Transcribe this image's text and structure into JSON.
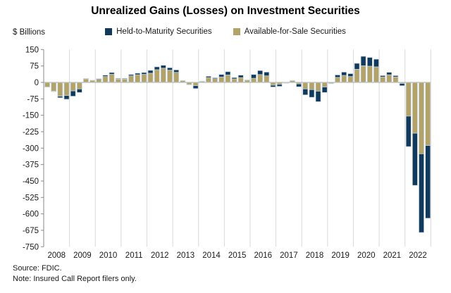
{
  "title": "Unrealized Gains (Losses) on Investment Securities",
  "y_axis_label": "$ Billions",
  "legend": [
    {
      "label": "Held-to-Maturity Securities",
      "color": "#11395C"
    },
    {
      "label": "Available-for-Sale Securities",
      "color": "#B3A369"
    }
  ],
  "footer": {
    "source": "Source: FDIC.",
    "note": "Note: Insured Call Report filers only."
  },
  "chart_data": {
    "type": "bar",
    "stacked": true,
    "title": "Unrealized Gains (Losses) on Investment Securities",
    "ylabel": "$ Billions",
    "x_unit": "quarterly, 2008Q1 - 2022Q4",
    "x_tick_labels": [
      "2008",
      "2009",
      "2010",
      "2011",
      "2012",
      "2013",
      "2014",
      "2015",
      "2016",
      "2017",
      "2018",
      "2019",
      "2020",
      "2021",
      "2022"
    ],
    "quarters_per_year": 4,
    "ylim": [
      -750,
      150
    ],
    "ytick_step": 75,
    "grid": "vertical-year-lines-only",
    "legend_position": "top",
    "colors": {
      "held_to_maturity": "#11395C",
      "available_for_sale": "#B3A369",
      "bar_outline": "#C8D7E1",
      "gridline": "#D9D9D9",
      "zero_line": "#A6A6A6",
      "axis": "#8A8A8A"
    },
    "series": [
      {
        "name": "Held-to-Maturity Securities",
        "color": "#11395C",
        "stack_order": "outer",
        "values": [
          -1,
          -2,
          -7,
          -17,
          -24,
          -16,
          2,
          1,
          3,
          6,
          8,
          3,
          3,
          6,
          7,
          8,
          13,
          13,
          13,
          11,
          11,
          1,
          -1,
          -13,
          1,
          6,
          4,
          11,
          15,
          6,
          11,
          2,
          17,
          18,
          17,
          -8,
          -9,
          -1,
          1,
          -13,
          -27,
          -35,
          -48,
          -25,
          -1,
          11,
          15,
          13,
          27,
          43,
          40,
          35,
          6,
          11,
          6,
          -10,
          -139,
          -238,
          -359,
          -332
        ]
      },
      {
        "name": "Available-for-Sale Securities",
        "color": "#B3A369",
        "stack_order": "inner",
        "values": [
          -21,
          -40,
          -63,
          -60,
          -39,
          -30,
          16,
          9,
          14,
          27,
          37,
          15,
          15,
          30,
          35,
          37,
          42,
          58,
          65,
          56,
          46,
          8,
          -10,
          -15,
          5,
          22,
          17,
          25,
          34,
          16,
          22,
          10,
          19,
          36,
          30,
          -13,
          -9,
          -3,
          8,
          -7,
          -30,
          -33,
          -40,
          -21,
          -5,
          23,
          32,
          27,
          60,
          76,
          74,
          71,
          25,
          35,
          25,
          -5,
          -154,
          -232,
          -326,
          -288
        ]
      }
    ],
    "stacked_totals": [
      -22,
      -42,
      -70,
      -77,
      -63,
      -46,
      18,
      10,
      17,
      33,
      45,
      18,
      18,
      36,
      42,
      45,
      55,
      71,
      78,
      67,
      57,
      9,
      -11,
      -28,
      6,
      28,
      21,
      36,
      49,
      22,
      33,
      12,
      36,
      54,
      47,
      -21,
      -18,
      -4,
      9,
      -20,
      -57,
      -68,
      -88,
      -46,
      -6,
      34,
      47,
      40,
      87,
      119,
      114,
      106,
      31,
      46,
      31,
      -15,
      -293,
      -470,
      -685,
      -620
    ]
  }
}
